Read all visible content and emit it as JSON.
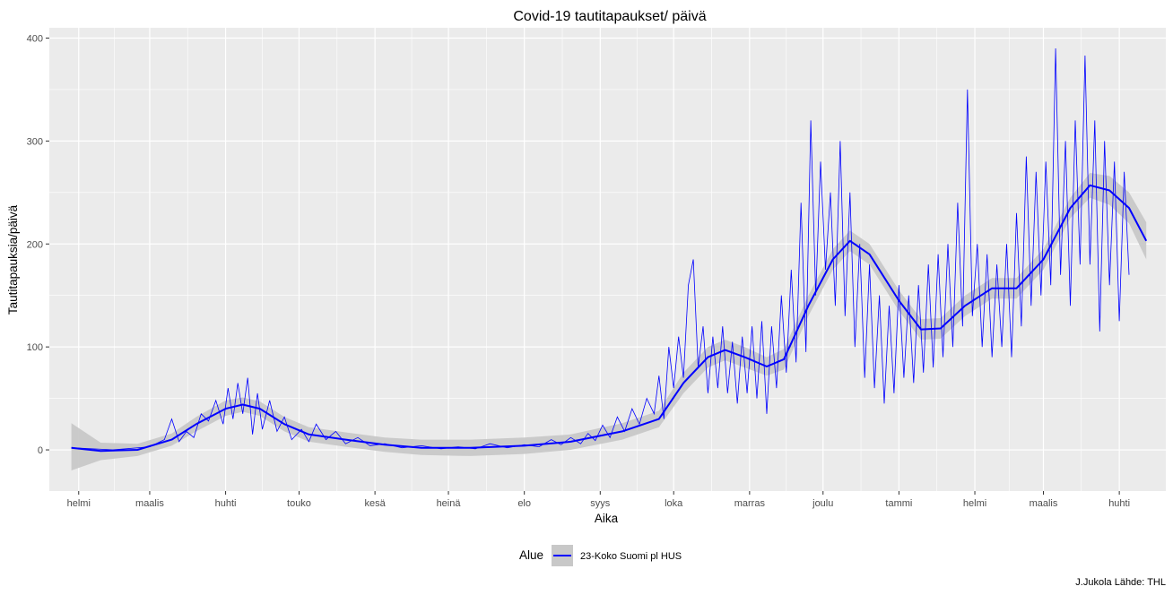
{
  "chart_data": {
    "type": "line",
    "title": "Covid-19 tautitapaukset/ päivä",
    "xlabel": "Aika",
    "ylabel": "Tautitapauksia/päivä",
    "caption": "J.Jukola  Lähde: THL",
    "x_range": [
      "2020-01-20",
      "2021-04-20"
    ],
    "x_ticks": [
      {
        "date": "2020-02-01",
        "label": "helmi"
      },
      {
        "date": "2020-03-01",
        "label": "maalis"
      },
      {
        "date": "2020-04-01",
        "label": "huhti"
      },
      {
        "date": "2020-05-01",
        "label": "touko"
      },
      {
        "date": "2020-06-01",
        "label": "kesä"
      },
      {
        "date": "2020-07-01",
        "label": "heinä"
      },
      {
        "date": "2020-08-01",
        "label": "elo"
      },
      {
        "date": "2020-09-01",
        "label": "syys"
      },
      {
        "date": "2020-10-01",
        "label": "loka"
      },
      {
        "date": "2020-11-01",
        "label": "marras"
      },
      {
        "date": "2020-12-01",
        "label": "joulu"
      },
      {
        "date": "2021-01-01",
        "label": "tammi"
      },
      {
        "date": "2021-02-01",
        "label": "helmi"
      },
      {
        "date": "2021-03-01",
        "label": "maalis"
      },
      {
        "date": "2021-04-01",
        "label": "huhti"
      }
    ],
    "y_ticks": [
      0,
      100,
      200,
      300,
      400
    ],
    "ylim": [
      -40,
      410
    ],
    "grid": true,
    "legend": {
      "title": "Alue",
      "position": "bottom",
      "entries": [
        "23-Koko Suomi pl HUS"
      ]
    },
    "colors": {
      "line": "#0000ff",
      "smooth": "#0000ff",
      "band": "#c8c8c8",
      "panel": "#ebebeb",
      "grid": "#ffffff"
    },
    "series": [
      {
        "name": "23-Koko Suomi pl HUS",
        "kind": "daily",
        "points": [
          [
            "2020-01-29",
            2
          ],
          [
            "2020-02-15",
            0
          ],
          [
            "2020-03-01",
            3
          ],
          [
            "2020-03-07",
            10
          ],
          [
            "2020-03-10",
            30
          ],
          [
            "2020-03-13",
            8
          ],
          [
            "2020-03-16",
            18
          ],
          [
            "2020-03-19",
            12
          ],
          [
            "2020-03-22",
            35
          ],
          [
            "2020-03-25",
            28
          ],
          [
            "2020-03-28",
            48
          ],
          [
            "2020-03-31",
            25
          ],
          [
            "2020-04-02",
            60
          ],
          [
            "2020-04-04",
            30
          ],
          [
            "2020-04-06",
            65
          ],
          [
            "2020-04-08",
            35
          ],
          [
            "2020-04-10",
            70
          ],
          [
            "2020-04-12",
            15
          ],
          [
            "2020-04-14",
            55
          ],
          [
            "2020-04-16",
            20
          ],
          [
            "2020-04-19",
            48
          ],
          [
            "2020-04-22",
            18
          ],
          [
            "2020-04-25",
            32
          ],
          [
            "2020-04-28",
            10
          ],
          [
            "2020-05-02",
            20
          ],
          [
            "2020-05-05",
            8
          ],
          [
            "2020-05-08",
            25
          ],
          [
            "2020-05-12",
            10
          ],
          [
            "2020-05-16",
            18
          ],
          [
            "2020-05-20",
            6
          ],
          [
            "2020-05-25",
            12
          ],
          [
            "2020-05-30",
            4
          ],
          [
            "2020-06-05",
            6
          ],
          [
            "2020-06-12",
            2
          ],
          [
            "2020-06-20",
            4
          ],
          [
            "2020-06-28",
            1
          ],
          [
            "2020-07-05",
            3
          ],
          [
            "2020-07-12",
            1
          ],
          [
            "2020-07-18",
            6
          ],
          [
            "2020-07-25",
            2
          ],
          [
            "2020-08-01",
            5
          ],
          [
            "2020-08-07",
            3
          ],
          [
            "2020-08-12",
            10
          ],
          [
            "2020-08-16",
            5
          ],
          [
            "2020-08-20",
            12
          ],
          [
            "2020-08-24",
            6
          ],
          [
            "2020-08-27",
            16
          ],
          [
            "2020-08-30",
            9
          ],
          [
            "2020-09-02",
            24
          ],
          [
            "2020-09-05",
            12
          ],
          [
            "2020-09-08",
            32
          ],
          [
            "2020-09-11",
            18
          ],
          [
            "2020-09-14",
            40
          ],
          [
            "2020-09-17",
            25
          ],
          [
            "2020-09-20",
            50
          ],
          [
            "2020-09-23",
            35
          ],
          [
            "2020-09-25",
            72
          ],
          [
            "2020-09-27",
            30
          ],
          [
            "2020-09-29",
            100
          ],
          [
            "2020-10-01",
            60
          ],
          [
            "2020-10-03",
            110
          ],
          [
            "2020-10-05",
            70
          ],
          [
            "2020-10-07",
            160
          ],
          [
            "2020-10-09",
            185
          ],
          [
            "2020-10-11",
            80
          ],
          [
            "2020-10-13",
            120
          ],
          [
            "2020-10-15",
            55
          ],
          [
            "2020-10-17",
            110
          ],
          [
            "2020-10-19",
            60
          ],
          [
            "2020-10-21",
            120
          ],
          [
            "2020-10-23",
            55
          ],
          [
            "2020-10-25",
            105
          ],
          [
            "2020-10-27",
            45
          ],
          [
            "2020-10-29",
            110
          ],
          [
            "2020-10-31",
            55
          ],
          [
            "2020-11-02",
            120
          ],
          [
            "2020-11-04",
            50
          ],
          [
            "2020-11-06",
            125
          ],
          [
            "2020-11-08",
            35
          ],
          [
            "2020-11-10",
            120
          ],
          [
            "2020-11-12",
            60
          ],
          [
            "2020-11-14",
            150
          ],
          [
            "2020-11-16",
            75
          ],
          [
            "2020-11-18",
            175
          ],
          [
            "2020-11-20",
            85
          ],
          [
            "2020-11-22",
            240
          ],
          [
            "2020-11-24",
            95
          ],
          [
            "2020-11-26",
            320
          ],
          [
            "2020-11-28",
            150
          ],
          [
            "2020-11-30",
            280
          ],
          [
            "2020-12-02",
            175
          ],
          [
            "2020-12-04",
            250
          ],
          [
            "2020-12-06",
            140
          ],
          [
            "2020-12-08",
            300
          ],
          [
            "2020-12-10",
            130
          ],
          [
            "2020-12-12",
            250
          ],
          [
            "2020-12-14",
            100
          ],
          [
            "2020-12-16",
            200
          ],
          [
            "2020-12-18",
            70
          ],
          [
            "2020-12-20",
            180
          ],
          [
            "2020-12-22",
            60
          ],
          [
            "2020-12-24",
            150
          ],
          [
            "2020-12-26",
            45
          ],
          [
            "2020-12-28",
            140
          ],
          [
            "2020-12-30",
            55
          ],
          [
            "2021-01-01",
            160
          ],
          [
            "2021-01-03",
            70
          ],
          [
            "2021-01-05",
            150
          ],
          [
            "2021-01-07",
            65
          ],
          [
            "2021-01-09",
            160
          ],
          [
            "2021-01-11",
            75
          ],
          [
            "2021-01-13",
            180
          ],
          [
            "2021-01-15",
            80
          ],
          [
            "2021-01-17",
            190
          ],
          [
            "2021-01-19",
            90
          ],
          [
            "2021-01-21",
            200
          ],
          [
            "2021-01-23",
            100
          ],
          [
            "2021-01-25",
            240
          ],
          [
            "2021-01-27",
            120
          ],
          [
            "2021-01-29",
            350
          ],
          [
            "2021-01-31",
            130
          ],
          [
            "2021-02-02",
            200
          ],
          [
            "2021-02-04",
            100
          ],
          [
            "2021-02-06",
            190
          ],
          [
            "2021-02-08",
            90
          ],
          [
            "2021-02-10",
            180
          ],
          [
            "2021-02-12",
            100
          ],
          [
            "2021-02-14",
            200
          ],
          [
            "2021-02-16",
            90
          ],
          [
            "2021-02-18",
            230
          ],
          [
            "2021-02-20",
            120
          ],
          [
            "2021-02-22",
            285
          ],
          [
            "2021-02-24",
            140
          ],
          [
            "2021-02-26",
            270
          ],
          [
            "2021-02-28",
            150
          ],
          [
            "2021-03-02",
            280
          ],
          [
            "2021-03-04",
            160
          ],
          [
            "2021-03-06",
            390
          ],
          [
            "2021-03-08",
            170
          ],
          [
            "2021-03-10",
            300
          ],
          [
            "2021-03-12",
            140
          ],
          [
            "2021-03-14",
            320
          ],
          [
            "2021-03-16",
            180
          ],
          [
            "2021-03-18",
            383
          ],
          [
            "2021-03-20",
            180
          ],
          [
            "2021-03-22",
            320
          ],
          [
            "2021-03-24",
            115
          ],
          [
            "2021-03-26",
            300
          ],
          [
            "2021-03-28",
            160
          ],
          [
            "2021-03-30",
            280
          ],
          [
            "2021-04-01",
            125
          ],
          [
            "2021-04-03",
            270
          ],
          [
            "2021-04-05",
            170
          ]
        ]
      },
      {
        "name": "23-Koko Suomi pl HUS",
        "kind": "smooth",
        "points": [
          [
            "2020-01-29",
            2,
            -20,
            26
          ],
          [
            "2020-02-10",
            -1,
            -10,
            7
          ],
          [
            "2020-02-25",
            0,
            -6,
            6
          ],
          [
            "2020-03-10",
            10,
            4,
            16
          ],
          [
            "2020-03-20",
            25,
            18,
            32
          ],
          [
            "2020-04-01",
            40,
            33,
            48
          ],
          [
            "2020-04-08",
            44,
            37,
            51
          ],
          [
            "2020-04-15",
            40,
            33,
            47
          ],
          [
            "2020-04-25",
            25,
            18,
            32
          ],
          [
            "2020-05-05",
            15,
            8,
            22
          ],
          [
            "2020-05-20",
            10,
            3,
            17
          ],
          [
            "2020-06-05",
            5,
            -2,
            12
          ],
          [
            "2020-06-20",
            2,
            -5,
            10
          ],
          [
            "2020-07-10",
            2,
            -6,
            10
          ],
          [
            "2020-08-01",
            4,
            -4,
            12
          ],
          [
            "2020-08-20",
            8,
            0,
            15
          ],
          [
            "2020-09-10",
            18,
            10,
            26
          ],
          [
            "2020-09-25",
            30,
            22,
            38
          ],
          [
            "2020-10-05",
            65,
            55,
            75
          ],
          [
            "2020-10-15",
            90,
            80,
            100
          ],
          [
            "2020-10-22",
            97,
            87,
            107
          ],
          [
            "2020-10-30",
            90,
            80,
            100
          ],
          [
            "2020-11-08",
            81,
            72,
            90
          ],
          [
            "2020-11-15",
            88,
            78,
            98
          ],
          [
            "2020-11-25",
            140,
            130,
            150
          ],
          [
            "2020-12-05",
            185,
            175,
            195
          ],
          [
            "2020-12-12",
            203,
            193,
            213
          ],
          [
            "2020-12-20",
            190,
            180,
            200
          ],
          [
            "2021-01-01",
            145,
            135,
            155
          ],
          [
            "2021-01-10",
            117,
            107,
            127
          ],
          [
            "2021-01-18",
            118,
            108,
            128
          ],
          [
            "2021-01-28",
            140,
            130,
            150
          ],
          [
            "2021-02-08",
            157,
            147,
            167
          ],
          [
            "2021-02-18",
            157,
            147,
            167
          ],
          [
            "2021-03-01",
            185,
            175,
            195
          ],
          [
            "2021-03-12",
            235,
            225,
            245
          ],
          [
            "2021-03-20",
            257,
            245,
            269
          ],
          [
            "2021-03-28",
            252,
            238,
            266
          ],
          [
            "2021-04-05",
            235,
            220,
            250
          ],
          [
            "2021-04-12",
            203,
            185,
            221
          ]
        ]
      }
    ]
  }
}
